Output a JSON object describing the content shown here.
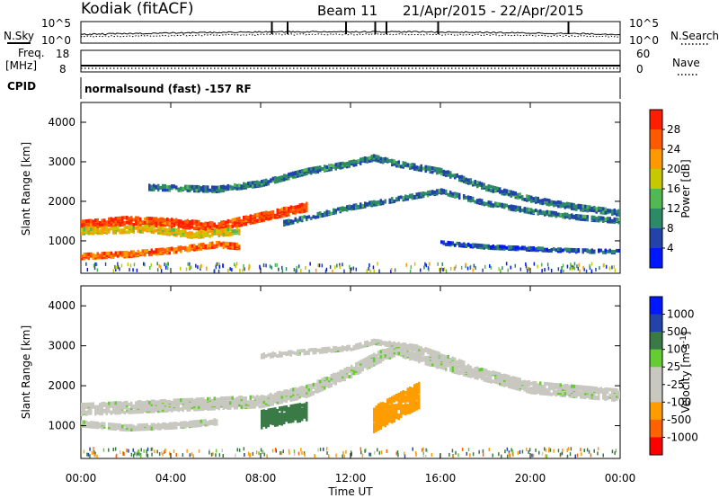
{
  "header": {
    "radar_title": "Kodiak (fitACF)",
    "beam": "Beam 11",
    "date_range": "21/Apr/2015 - 22/Apr/2015",
    "program": "normalsound (fast) -157 RF"
  },
  "side_labels": {
    "n_sky": "N.Sky",
    "freq": "Freq.",
    "freq_unit": "[MHz]",
    "cpid": "CPID",
    "n_search": "N.Search",
    "nave": "Nave"
  },
  "noise_ticks": {
    "left_top": "10^5",
    "left_bottom": "10^0",
    "right_top": "10^5",
    "right_bottom": "10^0"
  },
  "freq_ticks": {
    "left_top": "18",
    "left_bottom": "8",
    "right_top": "60",
    "right_bottom": "0"
  },
  "colors": {
    "power": [
      "#0018ff",
      "#2244aa",
      "#2d8a66",
      "#52b852",
      "#c8c800",
      "#ff9900",
      "#ff5a00",
      "#ff1e00"
    ],
    "velocity": [
      "#ff0000",
      "#ff6200",
      "#ff9d00",
      "#c8c8c0",
      "#c8c8c0",
      "#66cc33",
      "#3a7a46",
      "#2244aa",
      "#0018ff"
    ]
  },
  "chart_data": [
    {
      "type": "heatmap",
      "panel": "power",
      "title": "",
      "xlabel": "",
      "ylabel": "Slant Range [km]",
      "xlim": [
        "00:00",
        "00:00"
      ],
      "ylim": [
        180,
        4500
      ],
      "y_ticks": [
        "1000",
        "2000",
        "3000",
        "4000"
      ],
      "colorbar_label": "Power [dB]",
      "colorbar_ticks": [
        "4",
        "8",
        "12",
        "16",
        "20",
        "24",
        "28"
      ],
      "color_range": [
        0,
        30
      ],
      "echo_bands": [
        {
          "name": "strong-near",
          "points": [
            [
              0.0,
              1450
            ],
            [
              2.0,
              1550
            ],
            [
              4.0,
              1500
            ],
            [
              6.0,
              1400
            ],
            [
              8.0,
              1650
            ],
            [
              10.0,
              1900
            ]
          ],
          "width_km": 180,
          "power_db": 26
        },
        {
          "name": "mid-low",
          "points": [
            [
              0.0,
              1300
            ],
            [
              3.0,
              1350
            ],
            [
              5.0,
              1200
            ],
            [
              7.0,
              1300
            ]
          ],
          "width_km": 140,
          "power_db": 18
        },
        {
          "name": "main-arc",
          "points": [
            [
              3.0,
              2400
            ],
            [
              6.0,
              2350
            ],
            [
              8.0,
              2500
            ],
            [
              10.0,
              2800
            ],
            [
              12.0,
              3000
            ],
            [
              13.0,
              3150
            ],
            [
              14.0,
              3000
            ],
            [
              16.0,
              2800
            ],
            [
              18.0,
              2400
            ],
            [
              20.0,
              2100
            ],
            [
              22.0,
              1900
            ],
            [
              24.0,
              1750
            ]
          ],
          "width_km": 110,
          "power_db": 8
        },
        {
          "name": "lower-arc",
          "points": [
            [
              9.0,
              1500
            ],
            [
              12.0,
              1900
            ],
            [
              14.0,
              2100
            ],
            [
              16.0,
              2300
            ],
            [
              18.0,
              2000
            ],
            [
              20.0,
              1800
            ],
            [
              22.0,
              1650
            ],
            [
              24.0,
              1550
            ]
          ],
          "width_km": 90,
          "power_db": 8
        },
        {
          "name": "low-band",
          "points": [
            [
              16.0,
              1000
            ],
            [
              18.0,
              900
            ],
            [
              20.0,
              850
            ],
            [
              22.0,
              800
            ],
            [
              24.0,
              780
            ]
          ],
          "width_km": 70,
          "power_db": 6
        },
        {
          "name": "near-range",
          "points": [
            [
              0.0,
              650
            ],
            [
              2.0,
              700
            ],
            [
              4.0,
              800
            ],
            [
              6.0,
              950
            ],
            [
              7.0,
              900
            ]
          ],
          "width_km": 100,
          "power_db": 24
        }
      ]
    },
    {
      "type": "heatmap",
      "panel": "velocity",
      "title": "",
      "xlabel": "Time UT",
      "ylabel": "Slant Range [km]",
      "xlim": [
        "00:00",
        "00:00"
      ],
      "ylim": [
        180,
        4500
      ],
      "y_ticks": [
        "1000",
        "2000",
        "3000",
        "4000"
      ],
      "x_ticks": [
        "00:00",
        "04:00",
        "08:00",
        "12:00",
        "16:00",
        "20:00",
        "00:00"
      ],
      "colorbar_label": "Velocity [m s^-1]",
      "colorbar_ticks": [
        "-1000",
        "-500",
        "-100",
        "-25",
        "25",
        "100",
        "500",
        "1000"
      ],
      "echo_bands": [
        {
          "name": "ground-scatter",
          "points": [
            [
              0.0,
              1450
            ],
            [
              4.0,
              1550
            ],
            [
              8.0,
              1650
            ],
            [
              10.0,
              1900
            ],
            [
              12.0,
              2400
            ],
            [
              13.0,
              2700
            ],
            [
              14.0,
              2950
            ],
            [
              16.0,
              2600
            ],
            [
              18.0,
              2300
            ],
            [
              20.0,
              2000
            ],
            [
              24.0,
              1800
            ]
          ],
          "width_km": 250,
          "velocity": 0
        },
        {
          "name": "ground-scatter-2",
          "points": [
            [
              0.0,
              1100
            ],
            [
              2.0,
              1000
            ],
            [
              4.0,
              1050
            ],
            [
              6.0,
              1150
            ]
          ],
          "width_km": 120,
          "velocity": 0
        },
        {
          "name": "upper-arc",
          "points": [
            [
              8.0,
              2800
            ],
            [
              12.0,
              3000
            ],
            [
              13.0,
              3150
            ],
            [
              15.0,
              3000
            ],
            [
              17.0,
              2600
            ]
          ],
          "width_km": 90,
          "velocity": 0
        },
        {
          "name": "neg-patch",
          "points": [
            [
              13.0,
              1200
            ],
            [
              14.0,
              1500
            ],
            [
              15.0,
              1800
            ]
          ],
          "width_km": 600,
          "velocity": -300
        },
        {
          "name": "pos-patch",
          "points": [
            [
              8.0,
              1200
            ],
            [
              9.0,
              1300
            ],
            [
              10.0,
              1400
            ]
          ],
          "width_km": 400,
          "velocity": 400
        }
      ]
    }
  ]
}
